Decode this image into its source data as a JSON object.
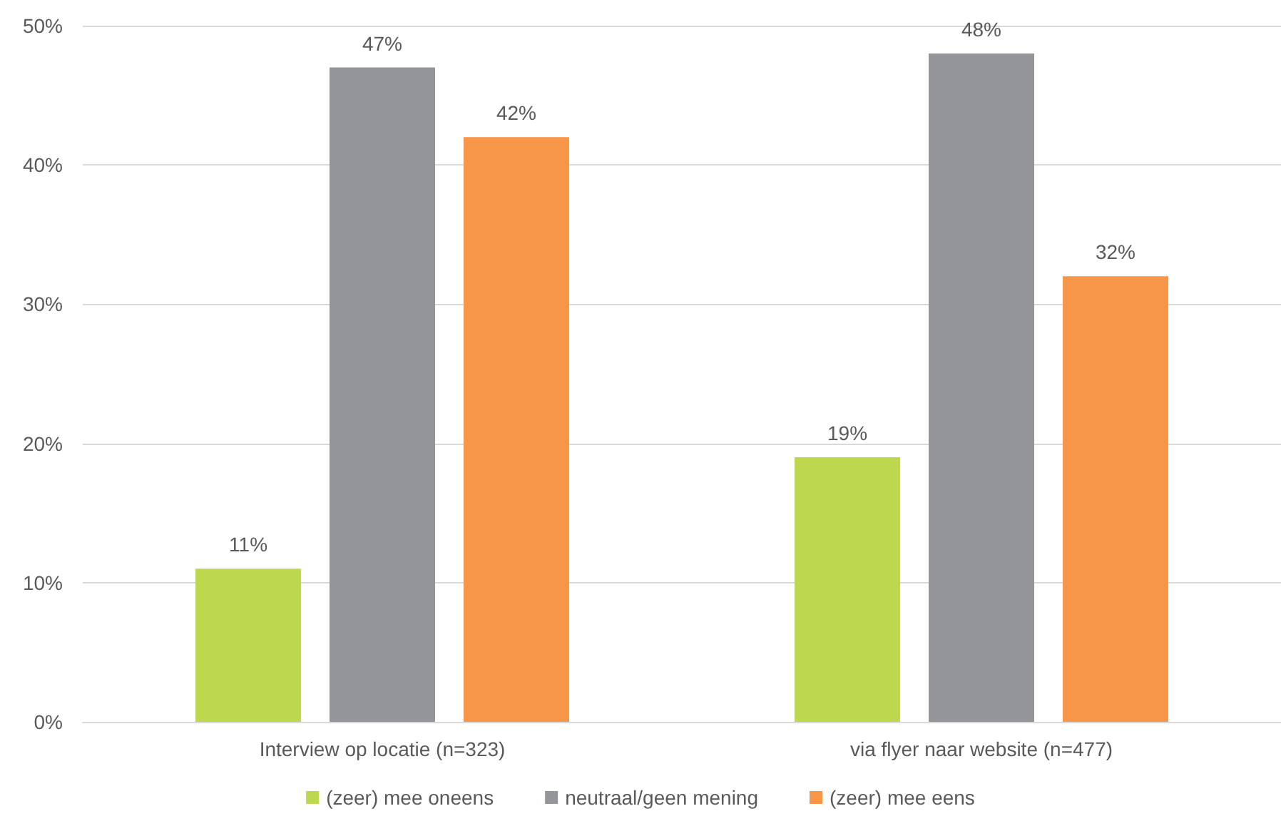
{
  "chart_data": {
    "type": "bar",
    "categories": [
      "Interview op locatie (n=323)",
      "via flyer naar website (n=477)"
    ],
    "series": [
      {
        "name": "(zeer) mee oneens",
        "color": "#bdd74f",
        "values": [
          11,
          19
        ],
        "value_labels": [
          "11%",
          "19%"
        ]
      },
      {
        "name": "neutraal/geen mening",
        "color": "#939598",
        "values": [
          47,
          48
        ],
        "value_labels": [
          "47%",
          "48%"
        ]
      },
      {
        "name": "(zeer) mee eens",
        "color": "#f79548",
        "values": [
          42,
          32
        ],
        "value_labels": [
          "42%",
          "32%"
        ]
      }
    ],
    "ylim": [
      0,
      50
    ],
    "yticks": [
      {
        "value": 0,
        "label": "0%"
      },
      {
        "value": 10,
        "label": "10%"
      },
      {
        "value": 20,
        "label": "20%"
      },
      {
        "value": 30,
        "label": "30%"
      },
      {
        "value": 40,
        "label": "40%"
      },
      {
        "value": 50,
        "label": "50%"
      }
    ],
    "grid": "y",
    "legend": "bottom"
  }
}
